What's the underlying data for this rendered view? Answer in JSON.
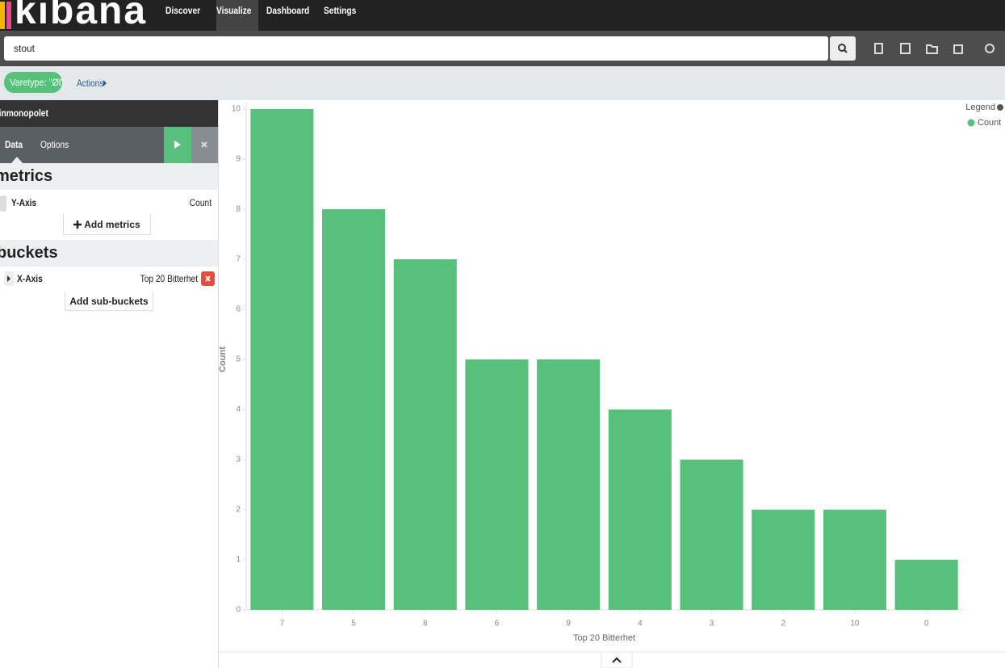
{
  "nav": {
    "brand": "kibana",
    "tabs": [
      "Discover",
      "Visualize",
      "Dashboard",
      "Settings"
    ]
  },
  "search": {
    "query": "stout"
  },
  "filter": {
    "label": "Varetype: \"Øl\"",
    "actions": "Actions"
  },
  "sidebar": {
    "index": "vinmonopolet",
    "tabs": [
      "Data",
      "Options"
    ],
    "metrics": {
      "heading": "metrics",
      "axis": "Y-Axis",
      "agg": "Count",
      "button": "Add metrics"
    },
    "buckets": {
      "heading": "buckets",
      "axis": "X-Axis",
      "agg": "Top 20 Bitterhet",
      "button": "Add sub-buckets"
    }
  },
  "chart_data": {
    "type": "bar",
    "categories": [
      "7",
      "5",
      "8",
      "6",
      "9",
      "4",
      "3",
      "2",
      "10",
      "0"
    ],
    "series": [
      {
        "name": "Count",
        "color": "#57c17b",
        "values": [
          10,
          8,
          7,
          5,
          5,
          4,
          3,
          2,
          2,
          1
        ]
      }
    ],
    "ylim": [
      0,
      10
    ],
    "yticks": [
      0,
      1,
      2,
      3,
      4,
      5,
      6,
      7,
      8,
      9,
      10
    ],
    "xlabel": "Top 20 Bitterhet",
    "ylabel": "Count",
    "legend_title": "Legend"
  }
}
